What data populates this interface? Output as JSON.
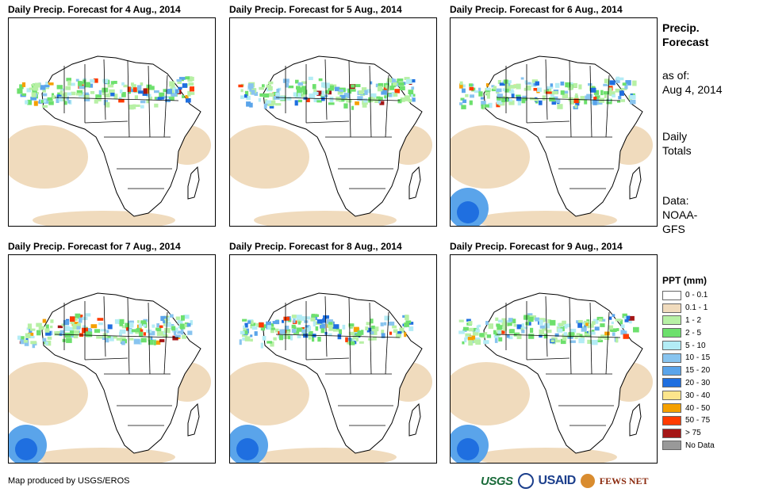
{
  "panels": [
    {
      "title": "Daily Precip. Forecast for 4 Aug., 2014"
    },
    {
      "title": "Daily Precip. Forecast for 5 Aug., 2014"
    },
    {
      "title": "Daily Precip. Forecast for 6 Aug., 2014"
    },
    {
      "title": "Daily Precip. Forecast for 7 Aug., 2014"
    },
    {
      "title": "Daily Precip. Forecast for 8 Aug., 2014"
    },
    {
      "title": "Daily Precip. Forecast for 9 Aug., 2014"
    }
  ],
  "sidebar": {
    "title_line1": "Precip.",
    "title_line2": "Forecast",
    "asof_line1": "as of:",
    "asof_line2": "Aug 4, 2014",
    "daily_line1": "Daily",
    "daily_line2": "Totals",
    "data_line1": "Data:",
    "data_line2": "NOAA-",
    "data_line3": "GFS"
  },
  "legend": {
    "title": "PPT (mm)",
    "items": [
      {
        "label": "0 - 0.1",
        "color": "#ffffff"
      },
      {
        "label": "0.1 - 1",
        "color": "#f0dbbd"
      },
      {
        "label": "1 - 2",
        "color": "#b7f0a5"
      },
      {
        "label": "2 - 5",
        "color": "#6de06d"
      },
      {
        "label": "5 - 10",
        "color": "#b3ecf5"
      },
      {
        "label": "10 - 15",
        "color": "#88c4ef"
      },
      {
        "label": "15 - 20",
        "color": "#5aa4ea"
      },
      {
        "label": "20 - 30",
        "color": "#1f6fe0"
      },
      {
        "label": "30 - 40",
        "color": "#fce58c"
      },
      {
        "label": "40 - 50",
        "color": "#f5a000"
      },
      {
        "label": "50 - 75",
        "color": "#ff3b00"
      },
      {
        "label": "> 75",
        "color": "#a51616"
      },
      {
        "label": "No Data",
        "color": "#999999"
      }
    ]
  },
  "footer": {
    "credit": "Map produced by USGS/EROS",
    "logo_usgs": "USGS",
    "logo_usaid": "USAID",
    "logo_fews": "FEWS NET"
  }
}
